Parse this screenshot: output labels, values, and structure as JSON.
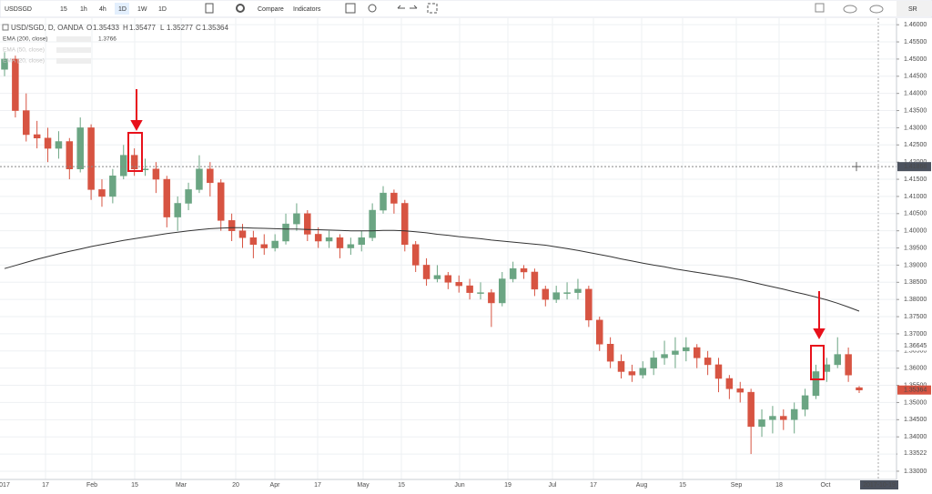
{
  "toolbar": {
    "symbol": "USDSGD",
    "intervals": [
      "15",
      "1h",
      "4h",
      "1D",
      "1W",
      "1D"
    ],
    "active_interval": 3,
    "compare": "Compare",
    "indicators": "Indicators",
    "account": "SR"
  },
  "chart_data": {
    "type": "candlestick",
    "legend": {
      "symbol": "USD/SGD, D, OANDA",
      "ohlc_labels": [
        "O",
        "H",
        "L",
        "C"
      ],
      "studies": [
        "EMA (200, close)",
        "EMA (50, close)",
        "EMA (20, close)"
      ]
    },
    "up_color": "#6ba583",
    "down_color": "#d75442",
    "ema_color": "#333333",
    "grid": true,
    "x_labels": [
      "017",
      "17",
      "Feb",
      "15",
      "Mar",
      "20",
      "Apr",
      "17",
      "May",
      "15",
      "Jun",
      "19",
      "Jul",
      "17",
      "Aug",
      "15",
      "Sep",
      "18",
      "Oct"
    ],
    "crosshair": {
      "price": 1.41868,
      "date": "2017-10-19"
    },
    "price_tags": [
      1.36645,
      1.33522
    ],
    "ylim": [
      1.3276,
      1.4619
    ],
    "yticks": [
      {
        "value": 1.46,
        "label": "1.46000"
      },
      {
        "value": 1.455,
        "label": "1.45500"
      },
      {
        "value": 1.45,
        "label": "1.45000"
      },
      {
        "value": 1.445,
        "label": "1.44500"
      },
      {
        "value": 1.44,
        "label": "1.44000"
      },
      {
        "value": 1.435,
        "label": "1.43500"
      },
      {
        "value": 1.43,
        "label": "1.43000"
      },
      {
        "value": 1.425,
        "label": "1.42500"
      },
      {
        "value": 1.42,
        "label": "1.42000"
      },
      {
        "value": 1.415,
        "label": "1.41500"
      },
      {
        "value": 1.41,
        "label": "1.41000"
      },
      {
        "value": 1.405,
        "label": "1.40500"
      },
      {
        "value": 1.4,
        "label": "1.40000"
      },
      {
        "value": 1.395,
        "label": "1.39500"
      },
      {
        "value": 1.39,
        "label": "1.39000"
      },
      {
        "value": 1.385,
        "label": "1.38500"
      },
      {
        "value": 1.38,
        "label": "1.38000"
      },
      {
        "value": 1.375,
        "label": "1.37500"
      },
      {
        "value": 1.37,
        "label": "1.37000"
      },
      {
        "value": 1.365,
        "label": "1.36500"
      },
      {
        "value": 1.36,
        "label": "1.36000"
      },
      {
        "value": 1.355,
        "label": "1.35500"
      },
      {
        "value": 1.35,
        "label": "1.35000"
      },
      {
        "value": 1.345,
        "label": "1.34500"
      },
      {
        "value": 1.34,
        "label": "1.34000"
      },
      {
        "value": 1.335,
        "label": "1.33500"
      },
      {
        "value": 1.33,
        "label": "1.33000"
      }
    ],
    "candles": [
      [
        1.447,
        1.452,
        1.445,
        1.45
      ],
      [
        1.45,
        1.451,
        1.433,
        1.435
      ],
      [
        1.435,
        1.44,
        1.426,
        1.428
      ],
      [
        1.428,
        1.432,
        1.424,
        1.427
      ],
      [
        1.427,
        1.43,
        1.42,
        1.424
      ],
      [
        1.424,
        1.429,
        1.421,
        1.426
      ],
      [
        1.426,
        1.427,
        1.415,
        1.418
      ],
      [
        1.418,
        1.433,
        1.417,
        1.43
      ],
      [
        1.43,
        1.431,
        1.409,
        1.412
      ],
      [
        1.412,
        1.415,
        1.407,
        1.41
      ],
      [
        1.41,
        1.418,
        1.408,
        1.416
      ],
      [
        1.416,
        1.425,
        1.415,
        1.422
      ],
      [
        1.422,
        1.424,
        1.416,
        1.418
      ],
      [
        1.418,
        1.421,
        1.416,
        1.418
      ],
      [
        1.418,
        1.42,
        1.411,
        1.415
      ],
      [
        1.415,
        1.416,
        1.401,
        1.404
      ],
      [
        1.404,
        1.41,
        1.4,
        1.408
      ],
      [
        1.408,
        1.414,
        1.406,
        1.412
      ],
      [
        1.412,
        1.422,
        1.411,
        1.418
      ],
      [
        1.418,
        1.42,
        1.41,
        1.414
      ],
      [
        1.414,
        1.415,
        1.4,
        1.403
      ],
      [
        1.403,
        1.405,
        1.397,
        1.4
      ],
      [
        1.4,
        1.402,
        1.395,
        1.398
      ],
      [
        1.398,
        1.4,
        1.392,
        1.396
      ],
      [
        1.396,
        1.399,
        1.393,
        1.395
      ],
      [
        1.395,
        1.399,
        1.394,
        1.397
      ],
      [
        1.397,
        1.405,
        1.396,
        1.402
      ],
      [
        1.402,
        1.408,
        1.4,
        1.405
      ],
      [
        1.405,
        1.406,
        1.397,
        1.399
      ],
      [
        1.399,
        1.401,
        1.395,
        1.397
      ],
      [
        1.397,
        1.4,
        1.395,
        1.398
      ],
      [
        1.398,
        1.399,
        1.392,
        1.395
      ],
      [
        1.395,
        1.398,
        1.393,
        1.396
      ],
      [
        1.396,
        1.4,
        1.394,
        1.398
      ],
      [
        1.398,
        1.408,
        1.397,
        1.406
      ],
      [
        1.406,
        1.413,
        1.405,
        1.411
      ],
      [
        1.411,
        1.412,
        1.405,
        1.408
      ],
      [
        1.408,
        1.409,
        1.394,
        1.396
      ],
      [
        1.396,
        1.397,
        1.388,
        1.39
      ],
      [
        1.39,
        1.392,
        1.384,
        1.386
      ],
      [
        1.386,
        1.39,
        1.385,
        1.387
      ],
      [
        1.387,
        1.388,
        1.383,
        1.385
      ],
      [
        1.385,
        1.387,
        1.382,
        1.384
      ],
      [
        1.384,
        1.386,
        1.38,
        1.382
      ],
      [
        1.382,
        1.385,
        1.38,
        1.382
      ],
      [
        1.382,
        1.383,
        1.372,
        1.379
      ],
      [
        1.379,
        1.388,
        1.378,
        1.386
      ],
      [
        1.386,
        1.391,
        1.385,
        1.389
      ],
      [
        1.389,
        1.39,
        1.386,
        1.388
      ],
      [
        1.388,
        1.389,
        1.381,
        1.383
      ],
      [
        1.383,
        1.384,
        1.378,
        1.38
      ],
      [
        1.38,
        1.384,
        1.379,
        1.382
      ],
      [
        1.382,
        1.385,
        1.38,
        1.382
      ],
      [
        1.382,
        1.386,
        1.38,
        1.383
      ],
      [
        1.383,
        1.384,
        1.372,
        1.374
      ],
      [
        1.374,
        1.375,
        1.365,
        1.367
      ],
      [
        1.367,
        1.369,
        1.36,
        1.362
      ],
      [
        1.362,
        1.364,
        1.357,
        1.359
      ],
      [
        1.359,
        1.361,
        1.356,
        1.358
      ],
      [
        1.358,
        1.362,
        1.357,
        1.36
      ],
      [
        1.36,
        1.365,
        1.358,
        1.363
      ],
      [
        1.363,
        1.368,
        1.361,
        1.364
      ],
      [
        1.364,
        1.369,
        1.36,
        1.365
      ],
      [
        1.365,
        1.369,
        1.362,
        1.366
      ],
      [
        1.366,
        1.367,
        1.36,
        1.363
      ],
      [
        1.363,
        1.365,
        1.358,
        1.361
      ],
      [
        1.361,
        1.363,
        1.353,
        1.357
      ],
      [
        1.357,
        1.358,
        1.351,
        1.354
      ],
      [
        1.354,
        1.356,
        1.35,
        1.353
      ],
      [
        1.353,
        1.354,
        1.335,
        1.343
      ],
      [
        1.343,
        1.348,
        1.34,
        1.345
      ],
      [
        1.345,
        1.349,
        1.341,
        1.346
      ],
      [
        1.346,
        1.348,
        1.342,
        1.345
      ],
      [
        1.345,
        1.35,
        1.341,
        1.348
      ],
      [
        1.348,
        1.354,
        1.346,
        1.352
      ],
      [
        1.352,
        1.361,
        1.351,
        1.359
      ],
      [
        1.359,
        1.363,
        1.356,
        1.361
      ],
      [
        1.361,
        1.369,
        1.36,
        1.364
      ],
      [
        1.364,
        1.366,
        1.356,
        1.358
      ],
      [
        1.35433,
        1.35477,
        1.35277,
        1.35364
      ]
    ],
    "ema": [
      1.389,
      1.3899,
      1.3908,
      1.3917,
      1.3925,
      1.3933,
      1.394,
      1.3947,
      1.3954,
      1.396,
      1.3966,
      1.3972,
      1.3977,
      1.3982,
      1.3987,
      1.3992,
      1.3996,
      1.4,
      1.4003,
      1.4006,
      1.4008,
      1.4009,
      1.4009,
      1.4008,
      1.4007,
      1.4006,
      1.4005,
      1.4005,
      1.4004,
      1.4003,
      1.4002,
      1.4001,
      1.4,
      1.4,
      1.4,
      1.4001,
      1.4001,
      1.4,
      1.3997,
      1.3994,
      1.399,
      1.3987,
      1.3983,
      1.398,
      1.3977,
      1.3973,
      1.397,
      1.3967,
      1.3964,
      1.3961,
      1.3958,
      1.3953,
      1.3948,
      1.3943,
      1.3937,
      1.3931,
      1.3925,
      1.3918,
      1.3912,
      1.3906,
      1.39,
      1.3895,
      1.3889,
      1.3884,
      1.3879,
      1.3874,
      1.3869,
      1.3864,
      1.3858,
      1.3851,
      1.3844,
      1.3837,
      1.383,
      1.3822,
      1.3815,
      1.3807,
      1.3799,
      1.3789,
      1.3778,
      1.3766
    ]
  }
}
